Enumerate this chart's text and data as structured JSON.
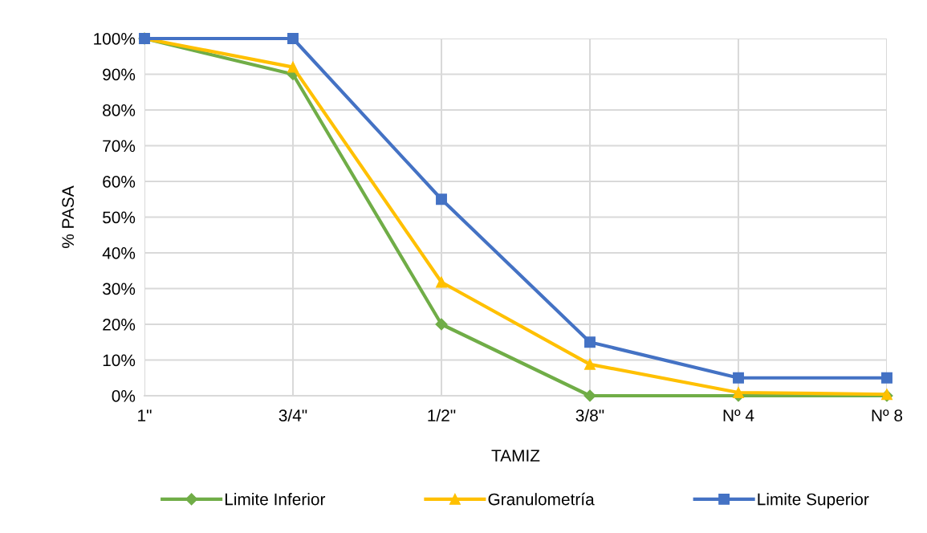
{
  "chart_data": {
    "type": "line",
    "xlabel": "TAMIZ",
    "ylabel": "% PASA",
    "categories": [
      "1\"",
      "3/4\"",
      "1/2\"",
      "3/8\"",
      "Nº 4",
      "Nº 8"
    ],
    "series": [
      {
        "name": "Limite Inferior",
        "color": "#70ad47",
        "marker": "diamond",
        "values": [
          100,
          90,
          20,
          0,
          0,
          0
        ]
      },
      {
        "name": "Granulometría",
        "color": "#ffc000",
        "marker": "triangle",
        "values": [
          100,
          92,
          31.8,
          8.8,
          0.9,
          0.4
        ]
      },
      {
        "name": "Limite Superior",
        "color": "#4472c4",
        "marker": "square",
        "values": [
          100,
          100,
          55,
          15,
          5,
          5
        ]
      }
    ],
    "ylim": [
      0,
      100
    ],
    "yticks": [
      {
        "value": 0,
        "label": "0%"
      },
      {
        "value": 10,
        "label": "10%"
      },
      {
        "value": 20,
        "label": "20%"
      },
      {
        "value": 30,
        "label": "30%"
      },
      {
        "value": 40,
        "label": "40%"
      },
      {
        "value": 50,
        "label": "50%"
      },
      {
        "value": 60,
        "label": "60%"
      },
      {
        "value": 70,
        "label": "70%"
      },
      {
        "value": 80,
        "label": "80%"
      },
      {
        "value": 90,
        "label": "90%"
      },
      {
        "value": 100,
        "label": "100%"
      }
    ],
    "grid": true,
    "legend": "bottom",
    "line_style": "solid"
  }
}
